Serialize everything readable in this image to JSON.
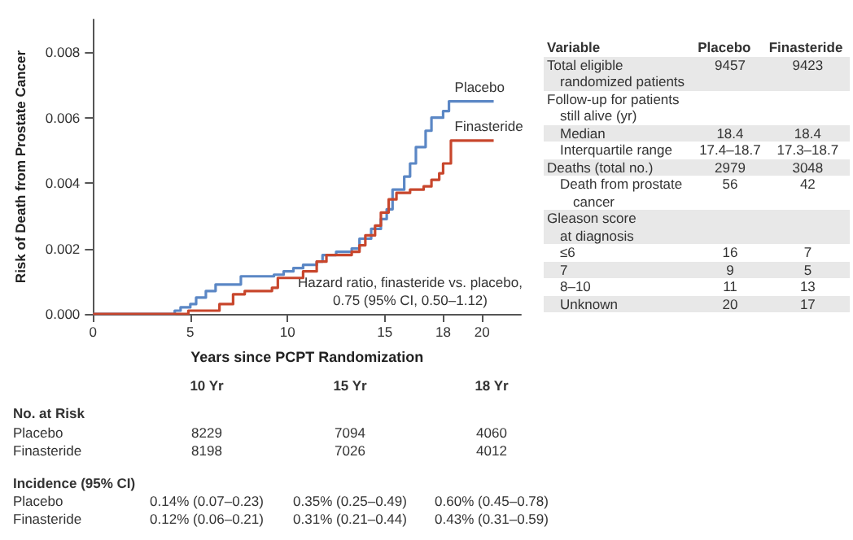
{
  "chart_data": [
    {
      "type": "step",
      "xlabel": "Years since PCPT Randomization",
      "ylabel": "Risk of Death from Prostate Cancer",
      "xlim": [
        0,
        22
      ],
      "xticks": [
        0,
        5,
        10,
        15,
        18,
        20
      ],
      "ylim": [
        0,
        0.009
      ],
      "yticks": [
        {
          "value": 0,
          "label": "0.000"
        },
        {
          "value": 0.002,
          "label": "0.002"
        },
        {
          "value": 0.004,
          "label": "0.004"
        },
        {
          "value": 0.006,
          "label": "0.006"
        },
        {
          "value": 0.008,
          "label": "0.008"
        }
      ],
      "marker": "none",
      "line_style": "solid",
      "grid": false,
      "legend": false,
      "series": [
        {
          "name": "Placebo",
          "color": "#5b87c5",
          "x": [
            0,
            4.2,
            4.5,
            5.0,
            5.3,
            5.8,
            6.3,
            7.6,
            9.3,
            9.8,
            10.3,
            10.8,
            11.5,
            11.8,
            12.5,
            13.3,
            13.7,
            14.3,
            14.8,
            15.1,
            15.4,
            16.0,
            16.3,
            16.6,
            17.1,
            17.4,
            18.0,
            18.3,
            20.6
          ],
          "values": [
            0,
            0.0001,
            0.0002,
            0.0003,
            0.0005,
            0.0007,
            0.0009,
            0.00115,
            0.0012,
            0.0013,
            0.0014,
            0.0015,
            0.0016,
            0.0018,
            0.0019,
            0.002,
            0.0023,
            0.0026,
            0.0029,
            0.0032,
            0.0038,
            0.0042,
            0.0046,
            0.0051,
            0.0056,
            0.006,
            0.0062,
            0.0065,
            0.0065
          ]
        },
        {
          "name": "Finasteride",
          "color": "#c8462c",
          "x": [
            0,
            4.9,
            6.5,
            7.2,
            7.8,
            9.2,
            9.5,
            10.8,
            11.5,
            12.0,
            13.3,
            13.7,
            14.0,
            14.5,
            14.8,
            15.2,
            15.6,
            16.3,
            17.0,
            17.4,
            17.8,
            18.0,
            18.4,
            20.6
          ],
          "values": [
            0,
            0.0001,
            0.0003,
            0.0006,
            0.0007,
            0.0008,
            0.0011,
            0.0013,
            0.0016,
            0.0018,
            0.0019,
            0.0021,
            0.0024,
            0.0027,
            0.0031,
            0.0035,
            0.0037,
            0.0038,
            0.0039,
            0.0041,
            0.0043,
            0.0046,
            0.0053,
            0.0053
          ]
        }
      ],
      "annotations": [
        "Hazard ratio, finasteride vs. placebo,\n0.75 (95% CI, 0.50–1.12)",
        "10 Yr",
        "15 Yr",
        "18 Yr",
        "No. at Risk",
        "Placebo",
        "8229",
        "7094",
        "4060",
        "Finasteride",
        "8198",
        "7026",
        "4012",
        "Incidence (95% CI)",
        "Placebo",
        "0.14% (0.07–0.23)",
        "0.35% (0.25–0.49)",
        "0.60% (0.45–0.78)",
        "Finasteride",
        "0.12% (0.06–0.21)",
        "0.31% (0.21–0.44)",
        "0.43% (0.31–0.59)"
      ]
    },
    {
      "type": "other",
      "annotations": [
        "Variable",
        "Placebo",
        "Finasteride",
        "Total eligible\nrandomized patients",
        "9457",
        "9423",
        "Follow-up for patients\nstill alive (yr)",
        "Median",
        "18.4",
        "18.4",
        "Interquartile range",
        "17.4–18.7",
        "17.3–18.7",
        "Deaths (total no.)",
        "2979",
        "3048",
        "Death from prostate\ncancer",
        "56",
        "42",
        "Gleason score\nat diagnosis",
        "≤6",
        "16",
        "7",
        "7",
        "9",
        "5",
        "8–10",
        "11",
        "13",
        "Unknown",
        "20",
        "17"
      ]
    }
  ]
}
